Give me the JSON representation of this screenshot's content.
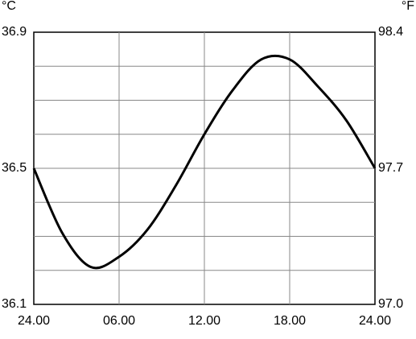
{
  "chart_data": {
    "type": "line",
    "ylabel": "°C",
    "y2label": "°F",
    "x": [
      0,
      2,
      4,
      6,
      8,
      10,
      12,
      14,
      16,
      18,
      20,
      22,
      24
    ],
    "series": [
      {
        "color": "#000000",
        "values": [
          36.5,
          36.31,
          36.21,
          36.24,
          36.32,
          36.45,
          36.6,
          36.73,
          36.82,
          36.82,
          36.74,
          36.64,
          36.5
        ]
      }
    ],
    "xlim": [
      0,
      24
    ],
    "xticks": [
      {
        "value": 0,
        "label": "24.00"
      },
      {
        "value": 6,
        "label": "06.00"
      },
      {
        "value": 12,
        "label": "12.00"
      },
      {
        "value": 18,
        "label": "18.00"
      },
      {
        "value": 24,
        "label": "24.00"
      }
    ],
    "ylim": [
      36.1,
      36.9
    ],
    "yticks": [
      36.1,
      36.5,
      36.9
    ],
    "ygrid": [
      36.2,
      36.3,
      36.4,
      36.5,
      36.6,
      36.7,
      36.8
    ],
    "y2lim": [
      97.0,
      98.4
    ],
    "y2ticks": [
      {
        "value": 97,
        "label": "97.0"
      },
      97.7,
      98.4
    ],
    "grid": true
  }
}
